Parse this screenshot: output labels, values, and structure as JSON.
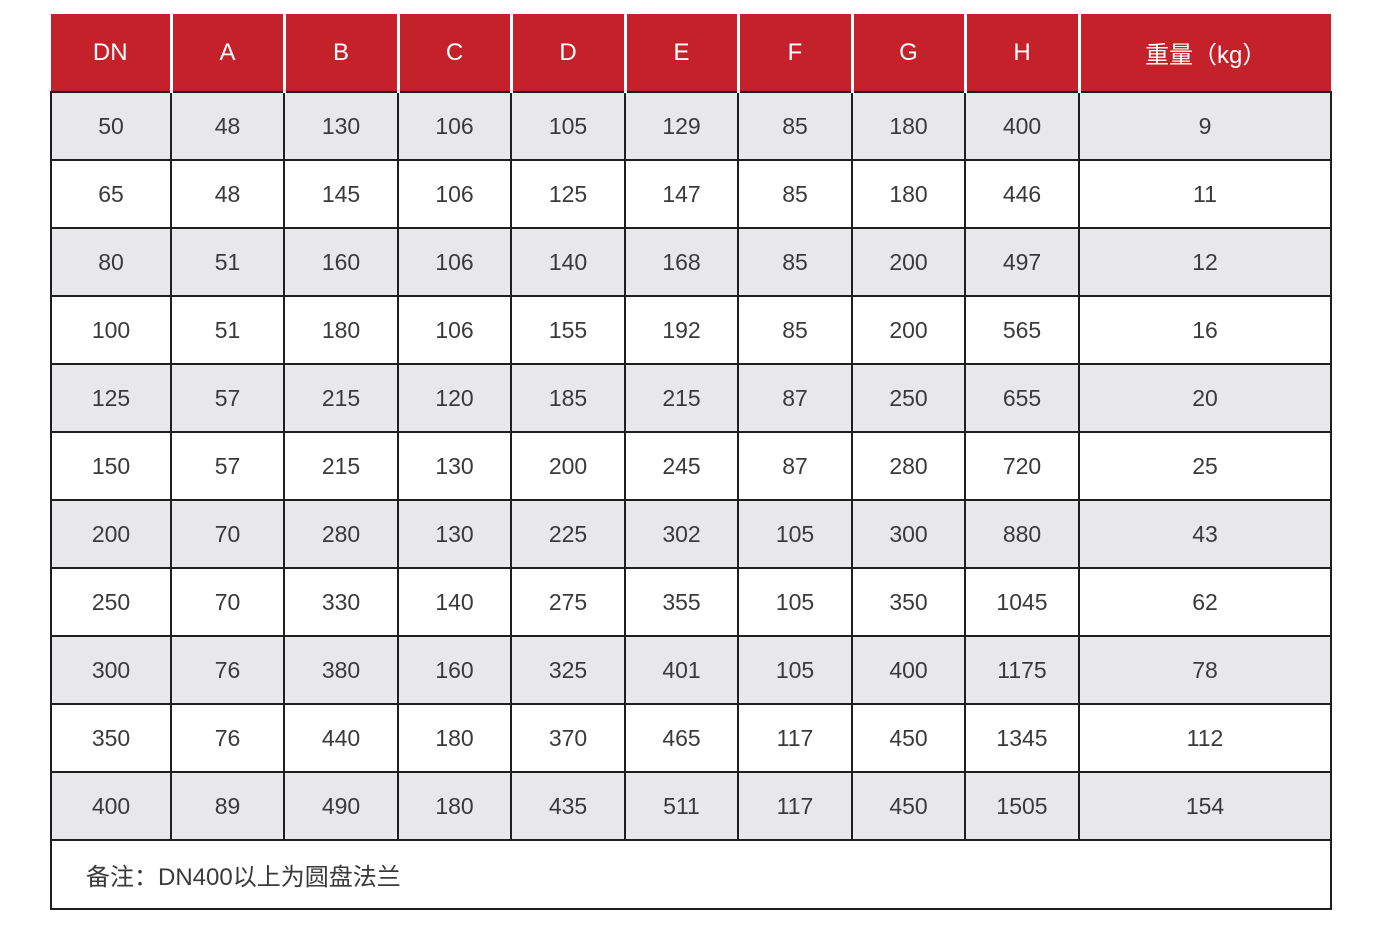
{
  "table": {
    "columns": [
      "DN",
      "A",
      "B",
      "C",
      "D",
      "E",
      "F",
      "G",
      "H",
      "重量（kg）"
    ],
    "rows": [
      [
        "50",
        "48",
        "130",
        "106",
        "105",
        "129",
        "85",
        "180",
        "400",
        "9"
      ],
      [
        "65",
        "48",
        "145",
        "106",
        "125",
        "147",
        "85",
        "180",
        "446",
        "11"
      ],
      [
        "80",
        "51",
        "160",
        "106",
        "140",
        "168",
        "85",
        "200",
        "497",
        "12"
      ],
      [
        "100",
        "51",
        "180",
        "106",
        "155",
        "192",
        "85",
        "200",
        "565",
        "16"
      ],
      [
        "125",
        "57",
        "215",
        "120",
        "185",
        "215",
        "87",
        "250",
        "655",
        "20"
      ],
      [
        "150",
        "57",
        "215",
        "130",
        "200",
        "245",
        "87",
        "280",
        "720",
        "25"
      ],
      [
        "200",
        "70",
        "280",
        "130",
        "225",
        "302",
        "105",
        "300",
        "880",
        "43"
      ],
      [
        "250",
        "70",
        "330",
        "140",
        "275",
        "355",
        "105",
        "350",
        "1045",
        "62"
      ],
      [
        "300",
        "76",
        "380",
        "160",
        "325",
        "401",
        "105",
        "400",
        "1175",
        "78"
      ],
      [
        "350",
        "76",
        "440",
        "180",
        "370",
        "465",
        "117",
        "450",
        "1345",
        "112"
      ],
      [
        "400",
        "89",
        "490",
        "180",
        "435",
        "511",
        "117",
        "450",
        "1505",
        "154"
      ]
    ],
    "note": "备注：DN400以上为圆盘法兰"
  },
  "colors": {
    "header_bg": "#c4212a",
    "header_text": "#ffffff",
    "row_alt_bg": "#e8e8ea",
    "row_bg": "#ffffff",
    "border": "#1f1f1f",
    "text": "#3a3a3a"
  }
}
